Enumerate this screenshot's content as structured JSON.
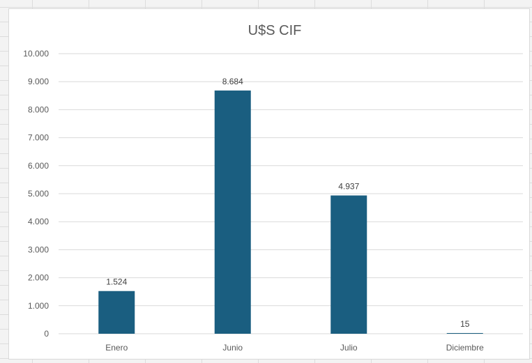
{
  "chart_data": {
    "type": "bar",
    "title": "U$S CIF",
    "categories": [
      "Enero",
      "Junio",
      "Julio",
      "Diciembre"
    ],
    "values": [
      1524,
      8684,
      4937,
      15
    ],
    "data_labels": [
      "1.524",
      "8.684",
      "4.937",
      "15"
    ],
    "ylim": [
      0,
      10000
    ],
    "yticks": [
      0,
      1000,
      2000,
      3000,
      4000,
      5000,
      6000,
      7000,
      8000,
      9000,
      10000
    ],
    "ytick_labels": [
      "0",
      "1.000",
      "2.000",
      "3.000",
      "4.000",
      "5.000",
      "6.000",
      "7.000",
      "8.000",
      "9.000",
      "10.000"
    ],
    "xlabel": "",
    "ylabel": "",
    "grid": true,
    "legend": "none",
    "bar_color": "#1a5e80",
    "gridline_color": "#d9d9d9"
  }
}
